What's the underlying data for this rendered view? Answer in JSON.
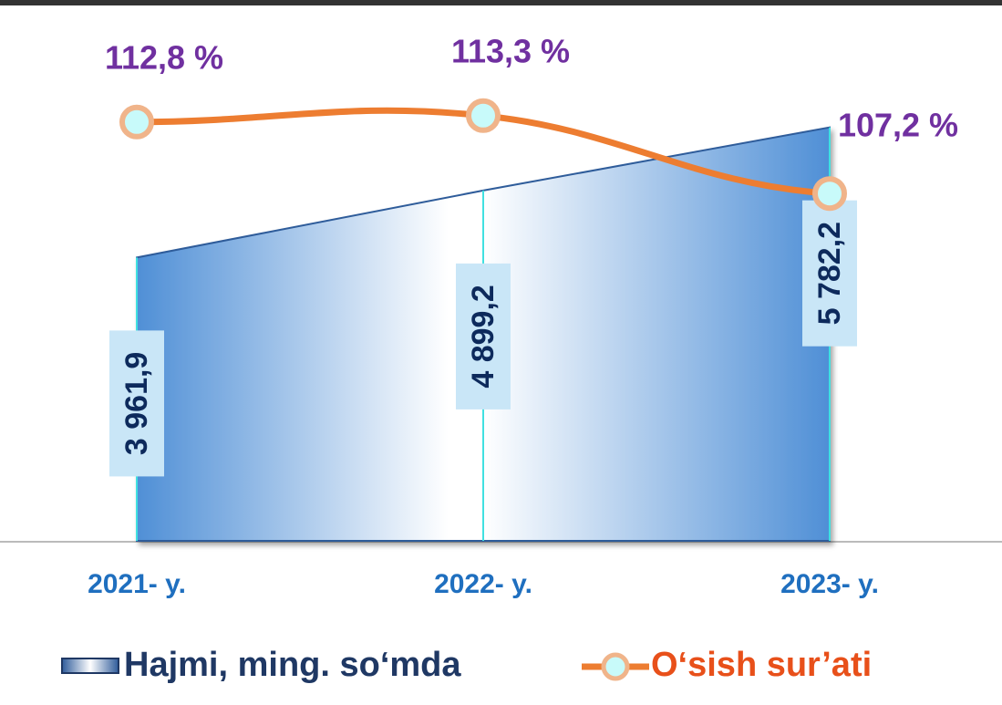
{
  "chart_data": {
    "type": "area-line",
    "categories": [
      "2021- y.",
      "2022- y.",
      "2023- y."
    ],
    "series": [
      {
        "name": "Hajmi, ming. so‘mda",
        "color": "#5b9bd5",
        "values": [
          3961.9,
          4899.2,
          5782.2
        ],
        "value_labels": [
          "3 961,9",
          "4 899,2",
          "5 782,2"
        ]
      },
      {
        "name": "O‘sish sur’ati",
        "color": "#ed7d31",
        "axis": "y2",
        "values": [
          112.8,
          113.3,
          107.2
        ],
        "value_labels": [
          "112,8 %",
          "113,3 %",
          "107,2 %"
        ]
      }
    ],
    "ylim": [
      0,
      7500
    ],
    "y2lim": [
      80,
      122
    ],
    "grid": false
  }
}
